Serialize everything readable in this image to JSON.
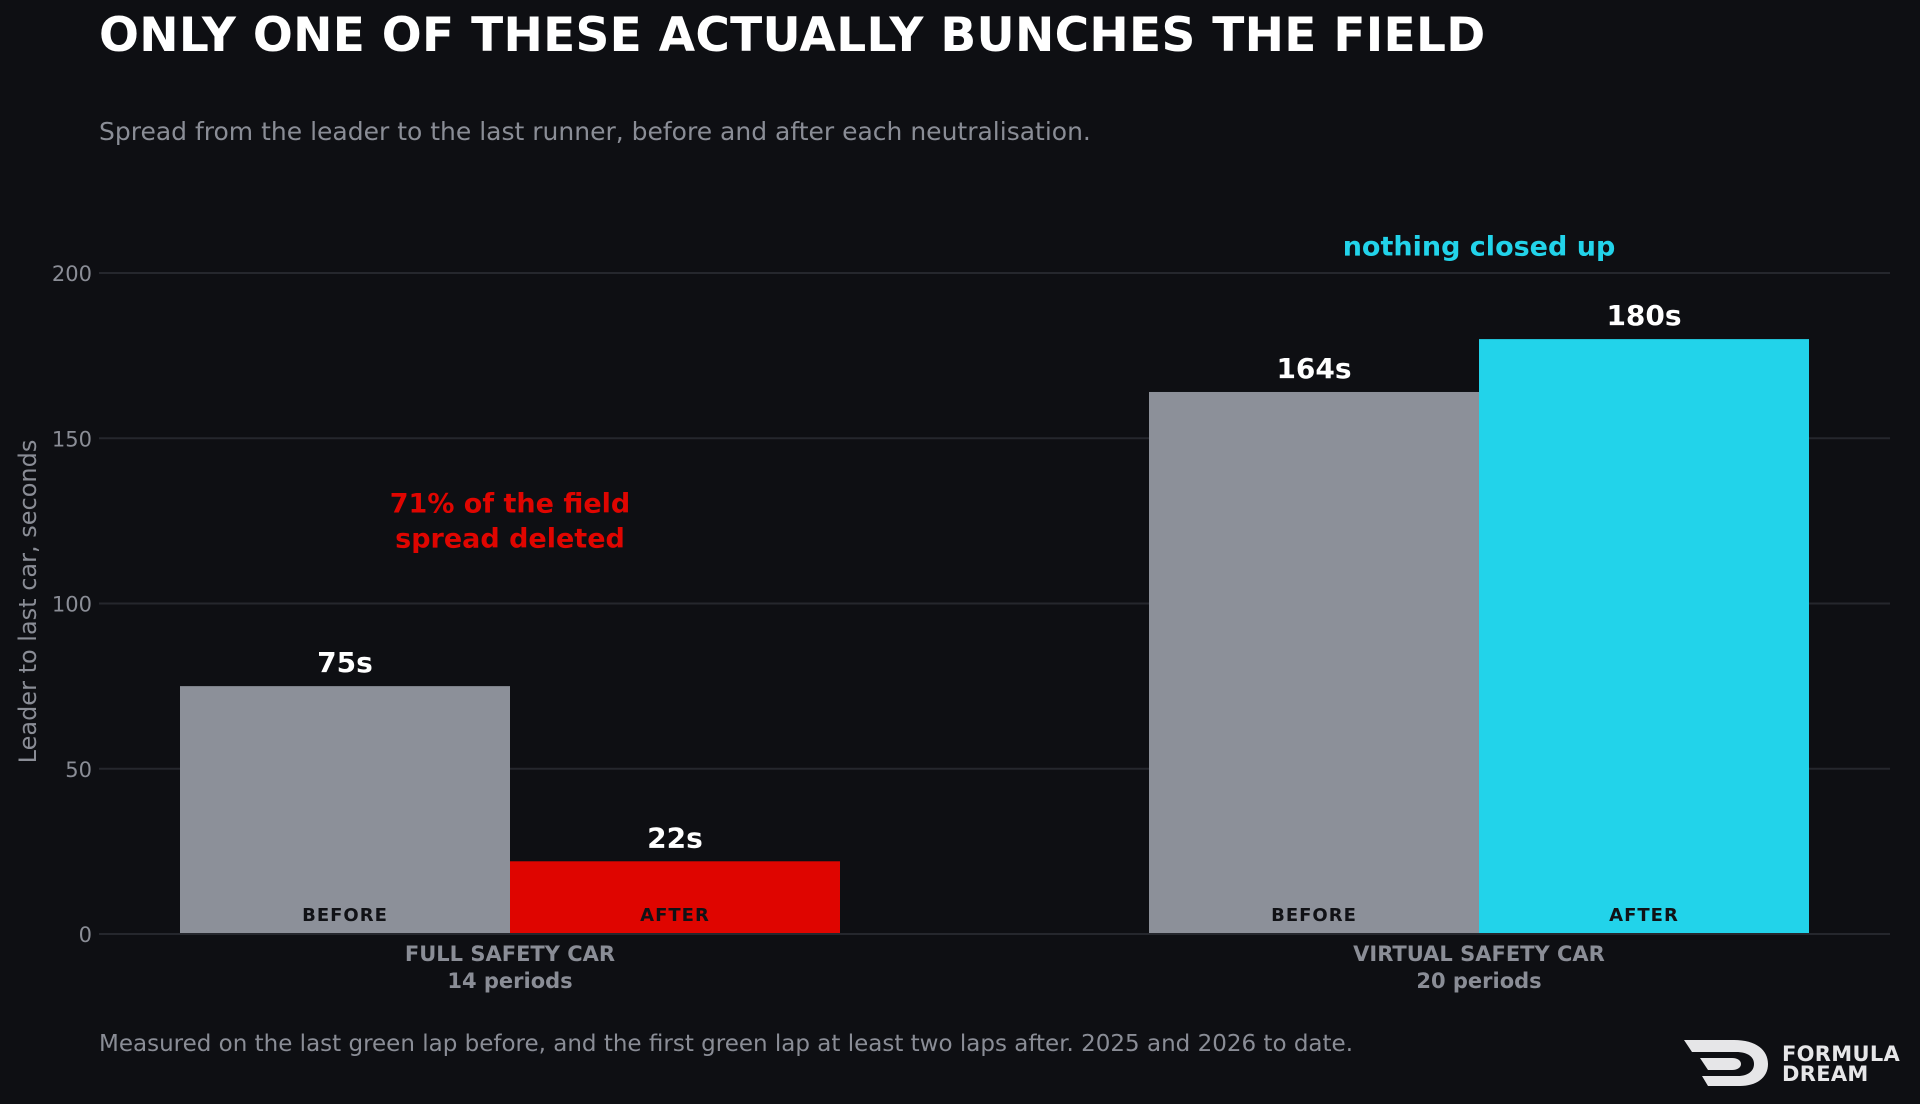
{
  "title": "ONLY ONE OF THESE ACTUALLY BUNCHES THE FIELD",
  "subtitle": "Spread from the leader to the last runner, before and after each neutralisation.",
  "footnote": "Measured on the last green lap before, and the first green lap at least two laps after. 2025 and 2026 to date.",
  "brand": {
    "line1": "FORMULA",
    "line2": "DREAM"
  },
  "colors": {
    "background": "#0e0f13",
    "grid": "#25272d",
    "axis_text": "#8a8d96",
    "before": "#8c9099",
    "after_full": "#df0500",
    "after_virtual": "#22d3ea",
    "annotation_red": "#df0500",
    "annotation_cyan": "#22d3ea"
  },
  "chart_data": {
    "type": "bar",
    "ylabel": "Leader to last car, seconds",
    "xlabel": "",
    "ylim": [
      0,
      200
    ],
    "yticks": [
      0,
      50,
      100,
      150,
      200
    ],
    "grid": true,
    "categories": [
      {
        "name": "FULL SAFETY CAR",
        "sub": "14 periods"
      },
      {
        "name": "VIRTUAL SAFETY CAR",
        "sub": "20 periods"
      }
    ],
    "series": [
      {
        "name": "BEFORE",
        "values": [
          75,
          164
        ],
        "labels": [
          "75s",
          "164s"
        ]
      },
      {
        "name": "AFTER",
        "values": [
          22,
          180
        ],
        "labels": [
          "22s",
          "180s"
        ]
      }
    ],
    "annotations": [
      {
        "text": "71% of the field\nspread deleted",
        "category": 0,
        "y": 125,
        "color_key": "annotation_red"
      },
      {
        "text": "nothing closed up",
        "category": 1,
        "y": 208,
        "color_key": "annotation_cyan"
      }
    ]
  }
}
